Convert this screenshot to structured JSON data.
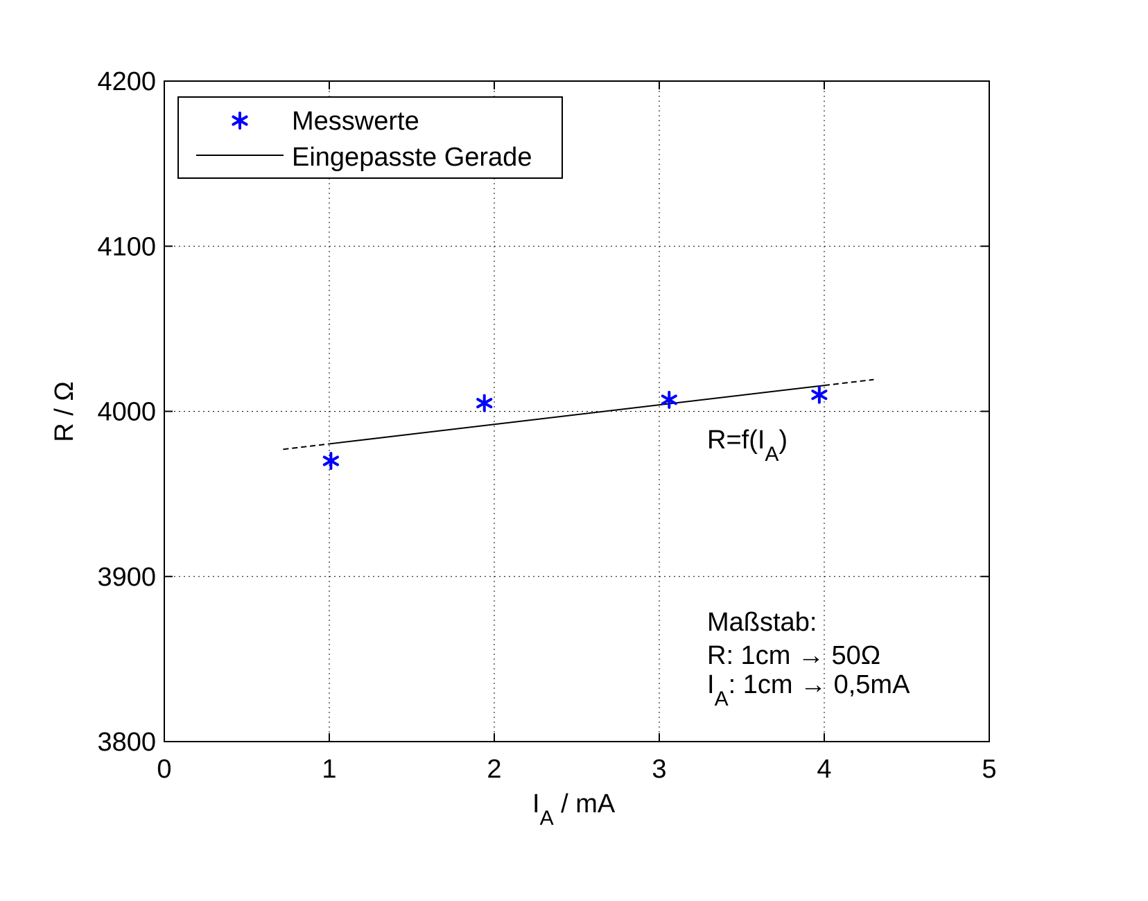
{
  "chart_data": {
    "type": "scatter",
    "xlim": [
      0,
      5
    ],
    "ylim": [
      3800,
      4200
    ],
    "x_ticks": [
      0,
      1,
      2,
      3,
      4,
      5
    ],
    "y_ticks": [
      3800,
      3900,
      4000,
      4100,
      4200
    ],
    "x_tick_labels": [
      "0",
      "1",
      "2",
      "3",
      "4",
      "5"
    ],
    "y_tick_labels": [
      "3800",
      "3900",
      "4000",
      "4100",
      "4200"
    ],
    "xlabel_main": "I",
    "xlabel_sub": "A",
    "xlabel_rest": " / mA",
    "ylabel": "R / Ω",
    "grid": true,
    "legend_position": "top-left",
    "series": [
      {
        "name": "Messwerte",
        "type": "scatter",
        "marker": "asterisk",
        "color": "#0000ff",
        "x": [
          1.01,
          1.94,
          3.06,
          3.97
        ],
        "y": [
          3970,
          4005,
          4007,
          4010
        ]
      },
      {
        "name": "Eingepasste Gerade",
        "type": "line",
        "color": "#000000",
        "solid_range": [
          1,
          4
        ],
        "dashed_range": [
          0.72,
          4.3
        ],
        "slope": 11.8,
        "intercept": 3968.5
      }
    ],
    "annotations": {
      "function_label_main": "R=f(I",
      "function_label_sub": "A",
      "function_label_end": ")",
      "scale_title": "Maßstab:",
      "scale_r": "R: 1cm → 50Ω",
      "scale_i_main": "I",
      "scale_i_sub": "A",
      "scale_i_rest": ": 1cm → 0,5mA"
    }
  }
}
